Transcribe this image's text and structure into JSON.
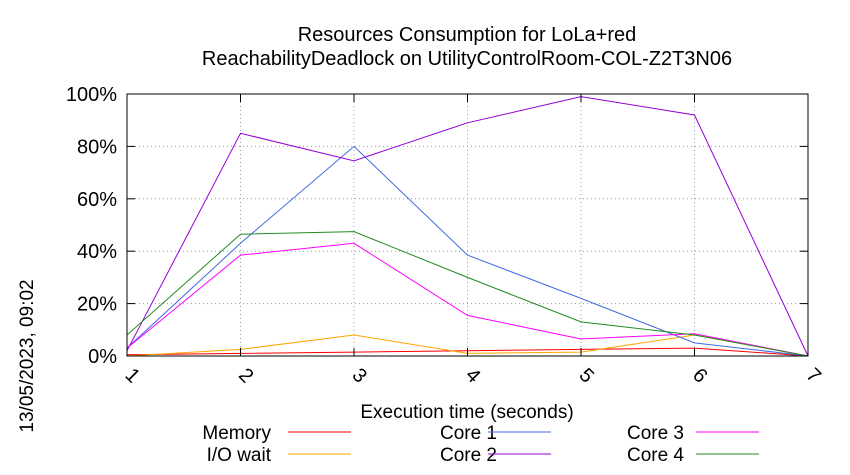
{
  "chart_data": {
    "type": "line",
    "title": "Resources Consumption for LoLa+red",
    "subtitle": "ReachabilityDeadlock on UtilityControlRoom-COL-Z2T3N06",
    "xlabel": "Execution time (seconds)",
    "ylabel": "",
    "side_label": "13/05/2023, 09:02",
    "x": [
      1,
      2,
      3,
      4,
      5,
      6,
      7
    ],
    "x_ticks": [
      "1",
      "2",
      "3",
      "4",
      "5",
      "6",
      "7"
    ],
    "y_ticks": [
      "0%",
      "20%",
      "40%",
      "60%",
      "80%",
      "100%"
    ],
    "xlim": [
      1,
      7
    ],
    "ylim": [
      0,
      100
    ],
    "grid": true,
    "legend_position": "bottom",
    "series": [
      {
        "name": "Memory",
        "color": "#ff0000",
        "values": [
          0.5,
          1,
          1.5,
          2,
          2.5,
          3,
          0
        ]
      },
      {
        "name": "I/O wait",
        "color": "#ffa500",
        "values": [
          0,
          2.5,
          8,
          1,
          1.5,
          8,
          0
        ]
      },
      {
        "name": "Core 1",
        "color": "#4169e1",
        "values": [
          3,
          43,
          80,
          38.5,
          22,
          5,
          0
        ]
      },
      {
        "name": "Core 2",
        "color": "#9400d3",
        "values": [
          2,
          85,
          74.5,
          89,
          99,
          92,
          0
        ]
      },
      {
        "name": "Core 3",
        "color": "#ff00ff",
        "values": [
          3,
          38.5,
          43,
          15.5,
          6.5,
          8.5,
          0
        ]
      },
      {
        "name": "Core 4",
        "color": "#228b22",
        "values": [
          8,
          46.5,
          47.5,
          30,
          13,
          8,
          0
        ]
      }
    ]
  }
}
